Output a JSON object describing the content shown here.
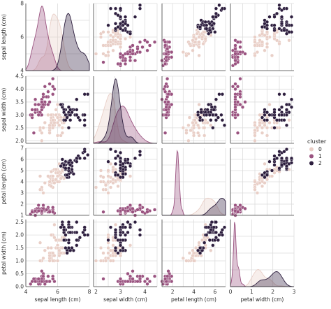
{
  "chart_data": {
    "type": "scatter",
    "variables": [
      "sepal length (cm)",
      "sepal width (cm)",
      "petal length (cm)",
      "petal width (cm)"
    ],
    "ranges": [
      [
        4,
        8
      ],
      [
        1.9,
        4.5
      ],
      [
        1,
        7
      ],
      [
        0,
        2.6
      ]
    ],
    "ticks": [
      [
        4,
        6,
        8
      ],
      [
        2.0,
        2.5,
        3.0,
        3.5,
        4.0,
        4.5
      ],
      [
        1,
        2,
        3,
        4,
        5,
        6,
        7
      ],
      [
        0.0,
        0.5,
        1.0,
        1.5,
        2.0,
        2.5
      ]
    ],
    "diag_ticks": [
      [
        4,
        6,
        8
      ],
      [
        2,
        3,
        4,
        5
      ],
      [
        0,
        2,
        4,
        6
      ],
      [
        0,
        1,
        2,
        3
      ]
    ],
    "grid": true,
    "legend": {
      "title": "cluster",
      "position": "right",
      "entries": [
        {
          "label": "0",
          "color": "#e9cfc7"
        },
        {
          "label": "1",
          "color": "#9a5380"
        },
        {
          "label": "2",
          "color": "#2d1e3e"
        }
      ]
    },
    "clusters": [
      {
        "name": "0",
        "color": "#e9cfc7",
        "fill_alpha": 0.35,
        "points": [
          [
            5.8,
            2.7,
            4.1,
            1.0
          ],
          [
            6.2,
            2.2,
            4.5,
            1.5
          ],
          [
            5.6,
            2.5,
            3.9,
            1.1
          ],
          [
            5.9,
            3.2,
            4.8,
            1.8
          ],
          [
            6.1,
            2.8,
            4.0,
            1.3
          ],
          [
            6.3,
            2.5,
            4.9,
            1.5
          ],
          [
            6.1,
            2.8,
            4.7,
            1.2
          ],
          [
            6.4,
            2.9,
            4.3,
            1.3
          ],
          [
            5.5,
            2.4,
            3.8,
            1.1
          ],
          [
            5.5,
            2.4,
            3.7,
            1.0
          ],
          [
            5.8,
            2.7,
            3.9,
            1.2
          ],
          [
            6.0,
            2.7,
            5.1,
            1.6
          ],
          [
            5.4,
            3.0,
            4.5,
            1.5
          ],
          [
            6.0,
            3.4,
            4.5,
            1.6
          ],
          [
            6.3,
            2.3,
            4.4,
            1.3
          ],
          [
            5.6,
            3.0,
            4.1,
            1.3
          ],
          [
            5.5,
            2.5,
            4.0,
            1.3
          ],
          [
            5.5,
            2.6,
            4.4,
            1.2
          ],
          [
            6.1,
            3.0,
            4.6,
            1.4
          ],
          [
            5.8,
            2.6,
            4.0,
            1.2
          ],
          [
            5.0,
            2.3,
            3.3,
            1.0
          ],
          [
            5.6,
            2.7,
            4.2,
            1.3
          ],
          [
            5.7,
            3.0,
            4.2,
            1.2
          ],
          [
            5.7,
            2.9,
            4.2,
            1.3
          ],
          [
            6.2,
            2.9,
            4.3,
            1.3
          ],
          [
            5.1,
            2.5,
            3.0,
            1.1
          ],
          [
            5.7,
            2.8,
            4.1,
            1.3
          ],
          [
            4.9,
            2.5,
            4.5,
            1.7
          ],
          [
            5.7,
            2.5,
            5.0,
            2.0
          ],
          [
            5.8,
            2.8,
            5.1,
            2.4
          ],
          [
            6.0,
            2.2,
            5.0,
            1.5
          ],
          [
            5.6,
            2.8,
            4.9,
            2.0
          ],
          [
            6.3,
            2.7,
            4.9,
            1.8
          ],
          [
            6.2,
            2.8,
            4.8,
            1.8
          ],
          [
            6.1,
            3.0,
            4.9,
            1.8
          ],
          [
            6.3,
            2.8,
            5.1,
            1.5
          ],
          [
            6.0,
            3.0,
            4.8,
            1.8
          ],
          [
            5.8,
            2.7,
            5.1,
            1.9
          ],
          [
            6.3,
            2.5,
            5.0,
            1.9
          ],
          [
            5.9,
            3.0,
            5.1,
            1.8
          ],
          [
            5.5,
            2.3,
            4.0,
            1.3
          ],
          [
            5.7,
            2.6,
            3.5,
            1.0
          ],
          [
            5.2,
            2.7,
            3.9,
            1.4
          ],
          [
            5.0,
            2.0,
            3.5,
            1.0
          ],
          [
            5.9,
            3.0,
            4.2,
            1.5
          ],
          [
            5.6,
            2.9,
            3.6,
            1.3
          ],
          [
            6.0,
            2.9,
            4.5,
            1.5
          ],
          [
            5.4,
            3.0,
            4.5,
            1.5
          ],
          [
            5.6,
            3.0,
            4.5,
            1.5
          ],
          [
            5.8,
            2.7,
            3.9,
            1.2
          ],
          [
            6.0,
            2.2,
            4.0,
            1.0
          ],
          [
            6.4,
            2.7,
            5.3,
            1.9
          ],
          [
            5.7,
            2.8,
            4.5,
            1.3
          ],
          [
            4.9,
            2.4,
            3.3,
            1.0
          ],
          [
            6.6,
            2.9,
            4.6,
            1.3
          ],
          [
            6.1,
            2.6,
            5.6,
            1.4
          ]
        ]
      },
      {
        "name": "1",
        "color": "#9a5380",
        "fill_alpha": 0.35,
        "points": [
          [
            5.1,
            3.5,
            1.4,
            0.2
          ],
          [
            4.9,
            3.0,
            1.4,
            0.2
          ],
          [
            4.7,
            3.2,
            1.3,
            0.2
          ],
          [
            4.6,
            3.1,
            1.5,
            0.2
          ],
          [
            5.0,
            3.6,
            1.4,
            0.2
          ],
          [
            5.4,
            3.9,
            1.7,
            0.4
          ],
          [
            4.6,
            3.4,
            1.4,
            0.3
          ],
          [
            5.0,
            3.4,
            1.5,
            0.2
          ],
          [
            4.4,
            2.9,
            1.4,
            0.2
          ],
          [
            4.9,
            3.1,
            1.5,
            0.1
          ],
          [
            5.4,
            3.7,
            1.5,
            0.2
          ],
          [
            4.8,
            3.4,
            1.6,
            0.2
          ],
          [
            4.8,
            3.0,
            1.4,
            0.1
          ],
          [
            4.3,
            3.0,
            1.1,
            0.1
          ],
          [
            5.8,
            4.0,
            1.2,
            0.2
          ],
          [
            5.7,
            4.4,
            1.5,
            0.4
          ],
          [
            5.4,
            3.9,
            1.3,
            0.4
          ],
          [
            5.1,
            3.5,
            1.4,
            0.3
          ],
          [
            5.7,
            3.8,
            1.7,
            0.3
          ],
          [
            5.1,
            3.8,
            1.5,
            0.3
          ],
          [
            5.4,
            3.4,
            1.7,
            0.2
          ],
          [
            5.1,
            3.7,
            1.5,
            0.4
          ],
          [
            4.6,
            3.6,
            1.0,
            0.2
          ],
          [
            5.1,
            3.3,
            1.7,
            0.5
          ],
          [
            4.8,
            3.4,
            1.9,
            0.2
          ],
          [
            5.0,
            3.0,
            1.6,
            0.2
          ],
          [
            5.0,
            3.4,
            1.6,
            0.4
          ],
          [
            5.2,
            3.5,
            1.5,
            0.2
          ],
          [
            5.2,
            3.4,
            1.4,
            0.2
          ],
          [
            4.7,
            3.2,
            1.6,
            0.2
          ],
          [
            4.8,
            3.1,
            1.6,
            0.2
          ],
          [
            5.4,
            3.4,
            1.5,
            0.4
          ],
          [
            5.2,
            4.1,
            1.5,
            0.1
          ],
          [
            5.5,
            4.2,
            1.4,
            0.2
          ],
          [
            4.9,
            3.1,
            1.5,
            0.2
          ],
          [
            5.0,
            3.2,
            1.2,
            0.2
          ],
          [
            5.5,
            3.5,
            1.3,
            0.2
          ],
          [
            4.4,
            3.0,
            1.3,
            0.2
          ],
          [
            5.1,
            3.4,
            1.5,
            0.2
          ],
          [
            5.0,
            3.5,
            1.3,
            0.3
          ],
          [
            4.5,
            2.3,
            1.3,
            0.3
          ],
          [
            4.4,
            3.2,
            1.3,
            0.2
          ],
          [
            5.0,
            3.5,
            1.6,
            0.6
          ],
          [
            5.1,
            3.8,
            1.9,
            0.4
          ],
          [
            4.8,
            3.0,
            1.4,
            0.3
          ],
          [
            5.1,
            3.8,
            1.6,
            0.2
          ],
          [
            4.6,
            3.2,
            1.4,
            0.2
          ],
          [
            5.3,
            3.7,
            1.5,
            0.2
          ],
          [
            5.0,
            3.3,
            1.4,
            0.2
          ],
          [
            5.7,
            4.1,
            1.3,
            0.3
          ]
        ]
      },
      {
        "name": "2",
        "color": "#2d1e3e",
        "fill_alpha": 0.35,
        "points": [
          [
            7.0,
            3.2,
            4.7,
            1.4
          ],
          [
            6.9,
            3.1,
            4.9,
            1.5
          ],
          [
            6.7,
            3.1,
            4.4,
            1.4
          ],
          [
            6.6,
            3.0,
            4.4,
            1.4
          ],
          [
            6.8,
            2.8,
            4.8,
            1.4
          ],
          [
            6.7,
            3.0,
            5.0,
            1.7
          ],
          [
            6.7,
            3.1,
            4.7,
            1.5
          ],
          [
            6.3,
            3.3,
            6.0,
            2.5
          ],
          [
            7.1,
            3.0,
            5.9,
            2.1
          ],
          [
            6.5,
            3.0,
            5.8,
            2.2
          ],
          [
            7.6,
            3.0,
            6.6,
            2.1
          ],
          [
            7.3,
            2.9,
            6.3,
            1.8
          ],
          [
            6.7,
            2.5,
            5.8,
            1.8
          ],
          [
            7.2,
            3.6,
            6.1,
            2.5
          ],
          [
            6.5,
            3.2,
            5.1,
            2.0
          ],
          [
            6.8,
            3.0,
            5.5,
            2.1
          ],
          [
            6.4,
            3.2,
            5.3,
            2.3
          ],
          [
            6.5,
            3.0,
            5.5,
            1.8
          ],
          [
            7.7,
            3.8,
            6.7,
            2.2
          ],
          [
            7.7,
            2.6,
            6.9,
            2.3
          ],
          [
            6.9,
            3.2,
            5.7,
            2.3
          ],
          [
            7.7,
            2.8,
            6.7,
            2.0
          ],
          [
            6.7,
            3.3,
            5.7,
            2.1
          ],
          [
            7.2,
            3.2,
            6.0,
            1.8
          ],
          [
            6.4,
            2.8,
            5.6,
            2.1
          ],
          [
            7.2,
            3.0,
            5.8,
            1.6
          ],
          [
            7.4,
            2.8,
            6.1,
            1.9
          ],
          [
            7.9,
            3.8,
            6.4,
            2.0
          ],
          [
            6.4,
            2.8,
            5.6,
            2.2
          ],
          [
            7.7,
            3.0,
            6.1,
            2.3
          ],
          [
            6.3,
            3.4,
            5.6,
            2.4
          ],
          [
            6.4,
            3.1,
            5.5,
            1.8
          ],
          [
            6.9,
            3.1,
            5.4,
            2.1
          ],
          [
            6.7,
            3.1,
            5.6,
            2.4
          ],
          [
            6.9,
            3.1,
            5.1,
            2.3
          ],
          [
            6.8,
            3.2,
            5.9,
            2.3
          ],
          [
            6.7,
            3.3,
            5.7,
            2.5
          ],
          [
            6.7,
            3.0,
            5.2,
            2.3
          ],
          [
            6.5,
            3.0,
            5.2,
            2.0
          ],
          [
            6.2,
            3.4,
            5.4,
            2.3
          ],
          [
            7.2,
            3.0,
            6.1,
            2.1
          ],
          [
            6.5,
            2.8,
            4.6,
            1.5
          ],
          [
            6.6,
            2.9,
            4.6,
            1.3
          ],
          [
            6.8,
            3.0,
            5.5,
            2.1
          ]
        ]
      }
    ]
  }
}
